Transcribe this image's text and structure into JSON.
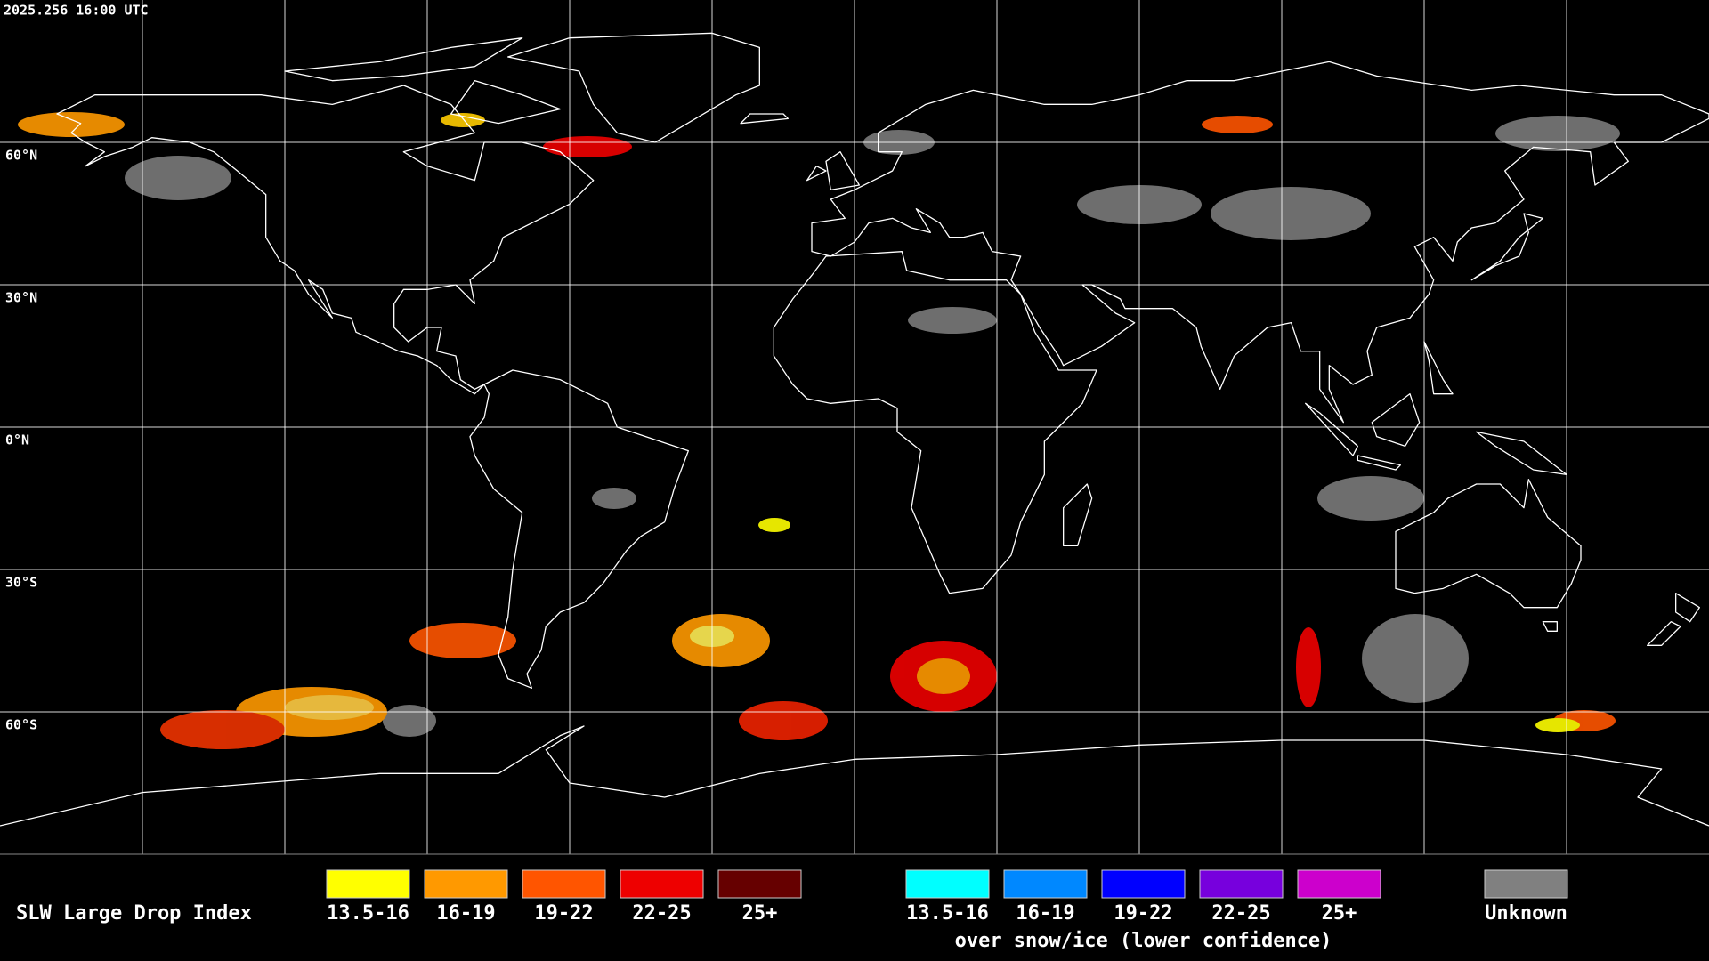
{
  "header": {
    "timestamp": "2025.256 16:00 UTC"
  },
  "map": {
    "latitude_labels": [
      "60°N",
      "30°N",
      "0°N",
      "30°S",
      "60°S"
    ]
  },
  "legend": {
    "title": "SLW Large Drop Index",
    "groups": [
      {
        "items": [
          {
            "label": "13.5-16",
            "color": "#ffff00"
          },
          {
            "label": "16-19",
            "color": "#ff9900"
          },
          {
            "label": "19-22",
            "color": "#ff5500"
          },
          {
            "label": "22-25",
            "color": "#ee0000"
          },
          {
            "label": "25+",
            "color": "#660000"
          }
        ]
      },
      {
        "items": [
          {
            "label": "13.5-16",
            "color": "#00ffff"
          },
          {
            "label": "16-19",
            "color": "#0088ff"
          },
          {
            "label": "19-22",
            "color": "#0000ff"
          },
          {
            "label": "22-25",
            "color": "#7700dd"
          },
          {
            "label": "25+",
            "color": "#cc00cc"
          }
        ],
        "caption": "over snow/ice (lower confidence)"
      }
    ],
    "unknown": {
      "label": "Unknown",
      "color": "#808080"
    }
  }
}
